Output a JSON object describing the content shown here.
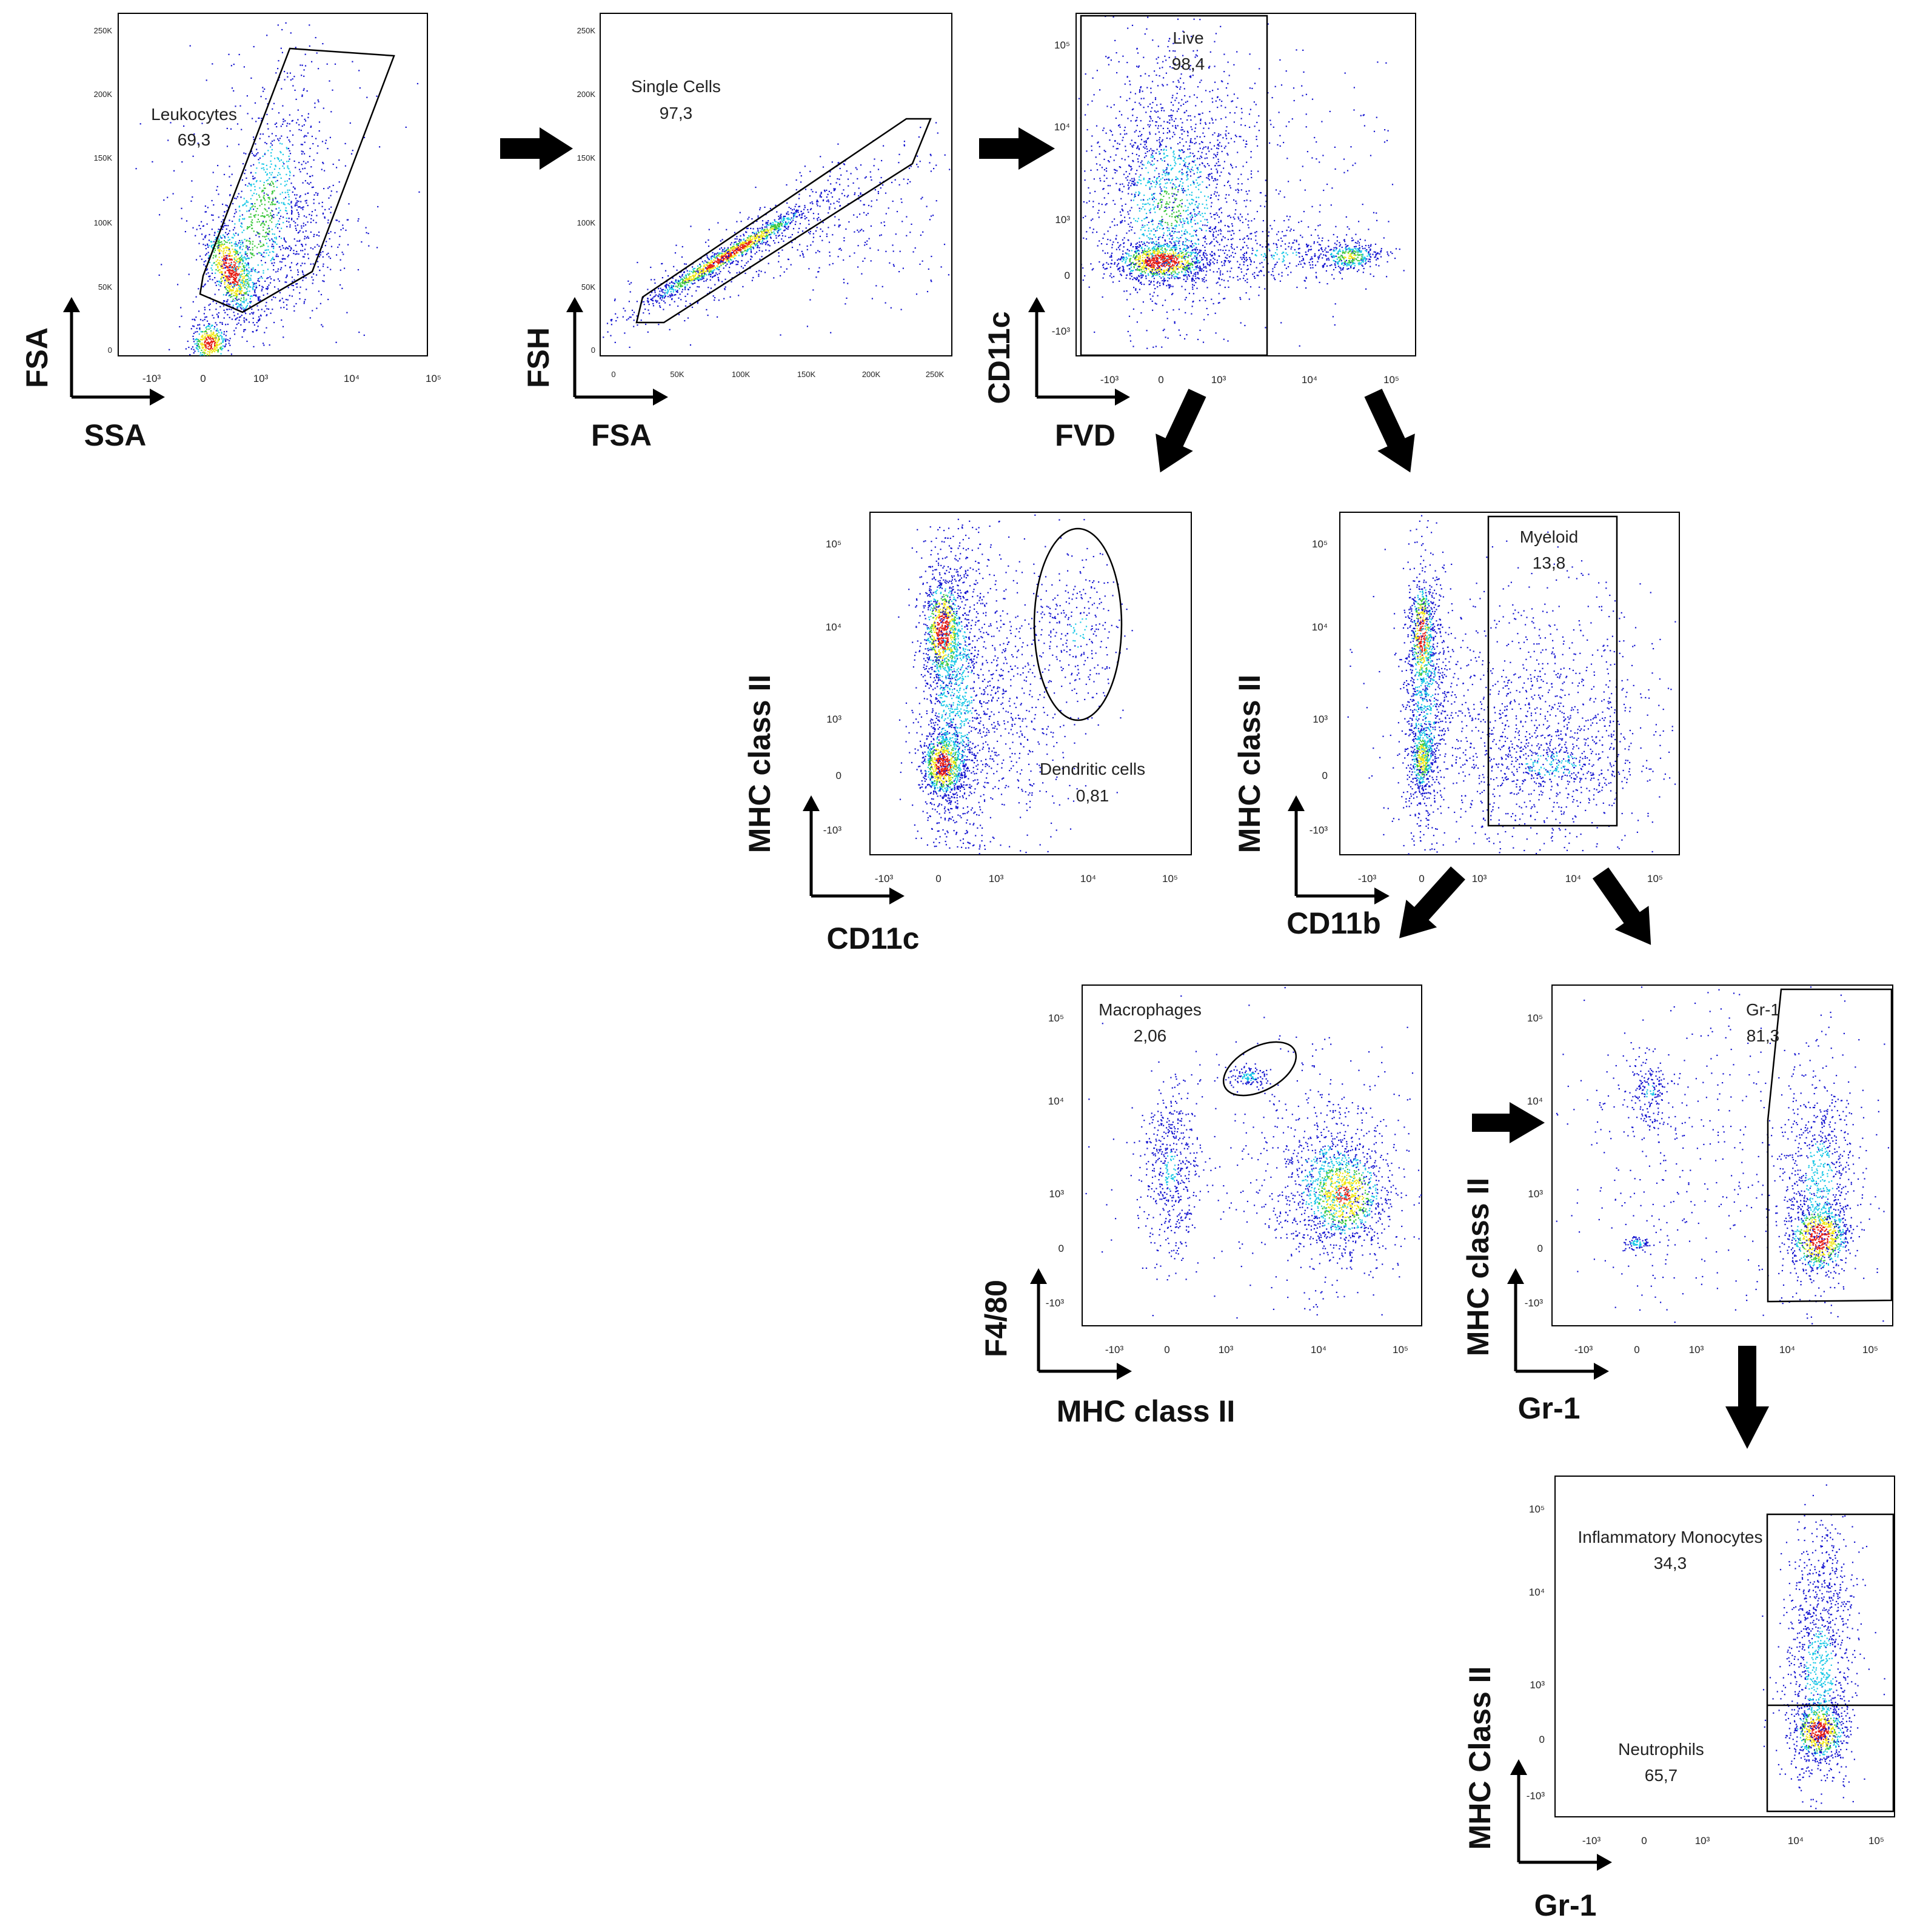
{
  "figure": {
    "description_free": true,
    "palette": {
      "low": "#1414d0",
      "mid": "#19c8e6",
      "high": "#3cc83c",
      "top": "#f0e614",
      "peak": "#e61e14"
    }
  },
  "chart_data": [
    {
      "type": "scatter",
      "id": "p1",
      "xlabel": "SSA",
      "ylabel": "FSA",
      "xticks": [
        "-10³",
        "0",
        "10³",
        "10⁴",
        "10⁵"
      ],
      "yticks": [
        "250K",
        "200K",
        "150K",
        "100K",
        "50K",
        "0"
      ],
      "gate": {
        "name": "Leukocytes",
        "value": "69,3"
      }
    },
    {
      "type": "scatter",
      "id": "p2",
      "xlabel": "FSA",
      "ylabel": "FSH",
      "xticks": [
        "0",
        "50K",
        "100K",
        "150K",
        "200K",
        "250K"
      ],
      "yticks": [
        "250K",
        "200K",
        "150K",
        "100K",
        "50K",
        "0"
      ],
      "gate": {
        "name": "Single Cells",
        "value": "97,3"
      }
    },
    {
      "type": "scatter",
      "id": "p3",
      "xlabel": "FVD",
      "ylabel": "CD11c",
      "xticks": [
        "-10³",
        "0",
        "10³",
        "10⁴",
        "10⁵"
      ],
      "yticks": [
        "10⁵",
        "10⁴",
        "10³",
        "0",
        "-10³"
      ],
      "gate": {
        "name": "Live",
        "value": "98,4"
      }
    },
    {
      "type": "scatter",
      "id": "p4",
      "xlabel": "CD11c",
      "ylabel": "MHC class II",
      "xticks": [
        "-10³",
        "0",
        "10³",
        "10⁴",
        "10⁵"
      ],
      "yticks": [
        "10⁵",
        "10⁴",
        "10³",
        "0",
        "-10³"
      ],
      "gate": {
        "name": "Dendritic cells",
        "value": "0,81"
      }
    },
    {
      "type": "scatter",
      "id": "p5",
      "xlabel": "CD11b",
      "ylabel": "MHC class II",
      "xticks": [
        "-10³",
        "0",
        "10³",
        "10⁴",
        "10⁵"
      ],
      "yticks": [
        "10⁵",
        "10⁴",
        "10³",
        "0",
        "-10³"
      ],
      "gate": {
        "name": "Myeloid",
        "value": "13,8"
      }
    },
    {
      "type": "scatter",
      "id": "p6",
      "xlabel": "MHC class II",
      "ylabel": "F4/80",
      "xticks": [
        "-10³",
        "0",
        "10³",
        "10⁴",
        "10⁵"
      ],
      "yticks": [
        "10⁵",
        "10⁴",
        "10³",
        "0",
        "-10³"
      ],
      "gate": {
        "name": "Macrophages",
        "value": "2,06"
      }
    },
    {
      "type": "scatter",
      "id": "p7",
      "xlabel": "Gr-1",
      "ylabel": "MHC class II",
      "xticks": [
        "-10³",
        "0",
        "10³",
        "10⁴",
        "10⁵"
      ],
      "yticks": [
        "10⁵",
        "10⁴",
        "10³",
        "0",
        "-10³"
      ],
      "gate": {
        "name": "Gr-1",
        "value": "81,3"
      }
    },
    {
      "type": "scatter",
      "id": "p8",
      "xlabel": "Gr-1",
      "ylabel": "MHC Class II",
      "xticks": [
        "-10³",
        "0",
        "10³",
        "10⁴",
        "10⁵"
      ],
      "yticks": [
        "10⁵",
        "10⁴",
        "10³",
        "0",
        "-10³"
      ],
      "gate": {
        "name": "Inflammatory Monocytes",
        "value": "34,3"
      },
      "gate2": {
        "name": "Neutrophils",
        "value": "65,7"
      }
    }
  ]
}
